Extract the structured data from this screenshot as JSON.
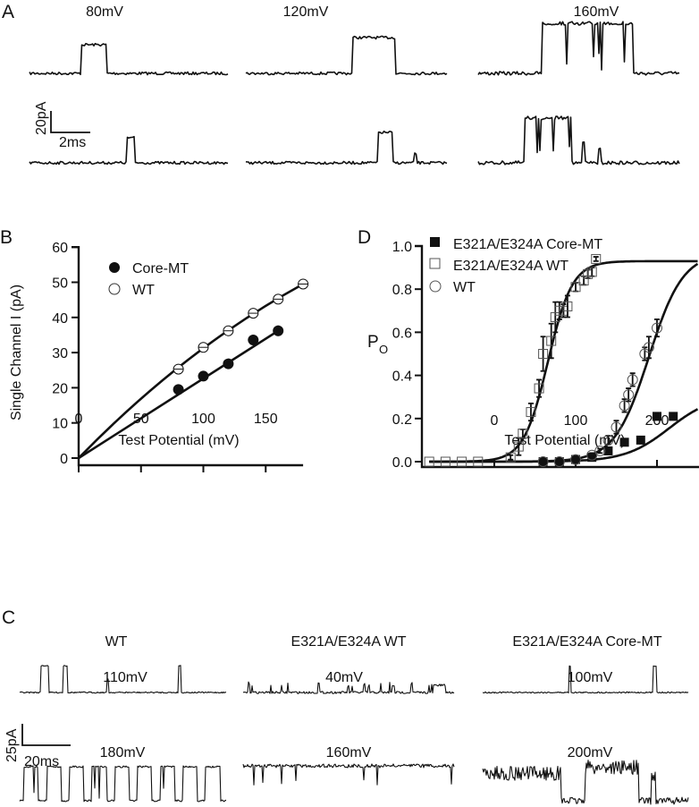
{
  "panels": {
    "A": {
      "label": "A",
      "voltages": [
        "80mV",
        "120mV",
        "160mV"
      ],
      "scale_current": "20pA",
      "scale_time": "2ms"
    },
    "B": {
      "label": "B"
    },
    "D": {
      "label": "D"
    },
    "C": {
      "label": "C",
      "titles": [
        "WT",
        "E321A/E324A WT",
        "E321A/E324A Core-MT"
      ],
      "voltages_top": [
        "110mV",
        "40mV",
        "100mV"
      ],
      "voltages_bottom": [
        "180mV",
        "160mV",
        "200mV"
      ],
      "scale_current": "25pA",
      "scale_time": "20ms"
    }
  },
  "chart_data": [
    {
      "id": "B",
      "type": "scatter",
      "title": "",
      "xlabel": "Test Potential (mV)",
      "ylabel": "Single Channel I (pA)",
      "xlim": [
        0,
        180
      ],
      "ylim": [
        0,
        60
      ],
      "xticks": [
        "0",
        "50",
        "100",
        "150"
      ],
      "xtick_values": [
        0,
        50,
        100,
        150
      ],
      "yticks": [
        "0",
        "10",
        "20",
        "30",
        "40",
        "50",
        "60"
      ],
      "ytick_values": [
        0,
        10,
        20,
        30,
        40,
        50,
        60
      ],
      "legend_placement": "top-left",
      "series": [
        {
          "name": "Core-MT",
          "marker": "filled-circle",
          "x": [
            80,
            100,
            120,
            140,
            160
          ],
          "y": [
            19.5,
            23.3,
            26.8,
            33.6,
            36.2
          ],
          "err": [
            0.6,
            0.6,
            0.6,
            1.4,
            1.5
          ],
          "fit": {
            "type": "linear-through-origin",
            "x_end": 160,
            "y_end": 36.2
          }
        },
        {
          "name": "WT",
          "marker": "open-circle",
          "x": [
            80,
            100,
            120,
            140,
            160,
            180
          ],
          "y": [
            25.3,
            31.5,
            36.2,
            41.2,
            45.2,
            49.5
          ],
          "err": [
            0.6,
            0.6,
            0.6,
            0.6,
            0.6,
            0.6
          ],
          "fit": {
            "type": "curved-through-origin",
            "x_end": 180,
            "y_end": 49.5
          }
        }
      ]
    },
    {
      "id": "D",
      "type": "scatter",
      "title": "",
      "xlabel": "Test Potential (mV)",
      "ylabel": "P",
      "ylabel_sub": "O",
      "xlim": [
        -90,
        250
      ],
      "ylim": [
        0,
        1.0
      ],
      "xticks": [
        "0",
        "100",
        "200"
      ],
      "xtick_values": [
        0,
        100,
        200
      ],
      "yticks": [
        "0.0",
        "0.2",
        "0.4",
        "0.6",
        "0.8",
        "1.0"
      ],
      "ytick_values": [
        0,
        0.2,
        0.4,
        0.6,
        0.8,
        1.0
      ],
      "legend_placement": "top-left",
      "series": [
        {
          "name": "E321A/E324A Core-MT",
          "marker": "filled-square",
          "x": [
            60,
            80,
            100,
            120,
            140,
            160,
            180,
            200,
            220
          ],
          "y": [
            0.0,
            0.0,
            0.01,
            0.02,
            0.05,
            0.09,
            0.1,
            0.21,
            0.21
          ],
          "err": [
            0,
            0,
            0,
            0,
            0,
            0,
            0,
            0,
            0
          ],
          "fit": {
            "type": "boltzmann",
            "max": 0.31,
            "v_half": 215,
            "k": 27
          }
        },
        {
          "name": "E321A/E324A WT",
          "marker": "open-square",
          "x": [
            -80,
            -60,
            -40,
            -20,
            20,
            30,
            35,
            45,
            55,
            60,
            70,
            75,
            80,
            85,
            90,
            100,
            110,
            115,
            120,
            125
          ],
          "y": [
            0.0,
            0.0,
            0.0,
            0.0,
            0.02,
            0.07,
            0.13,
            0.23,
            0.34,
            0.5,
            0.56,
            0.67,
            0.7,
            0.7,
            0.72,
            0.81,
            0.84,
            0.87,
            0.88,
            0.94
          ],
          "err": [
            0,
            0,
            0,
            0,
            0.01,
            0.04,
            0.02,
            0.04,
            0.04,
            0.08,
            0.08,
            0.07,
            0.04,
            0.03,
            0.05,
            0.02,
            0.02,
            0.02,
            0.02,
            0.01
          ],
          "fit": {
            "type": "boltzmann",
            "max": 0.93,
            "v_half": 66,
            "k": 15
          }
        },
        {
          "name": "WT",
          "marker": "open-circle",
          "x": [
            60,
            80,
            100,
            120,
            130,
            140,
            150,
            160,
            165,
            170,
            185,
            190,
            200
          ],
          "y": [
            0.0,
            0.0,
            0.01,
            0.03,
            0.05,
            0.1,
            0.16,
            0.26,
            0.31,
            0.38,
            0.5,
            0.53,
            0.62
          ],
          "err": [
            0,
            0,
            0,
            0.01,
            0.01,
            0.02,
            0.03,
            0.03,
            0.03,
            0.03,
            0.03,
            0.05,
            0.04
          ],
          "fit": {
            "type": "boltzmann",
            "max": 0.97,
            "v_half": 190,
            "k": 21
          }
        }
      ]
    }
  ]
}
